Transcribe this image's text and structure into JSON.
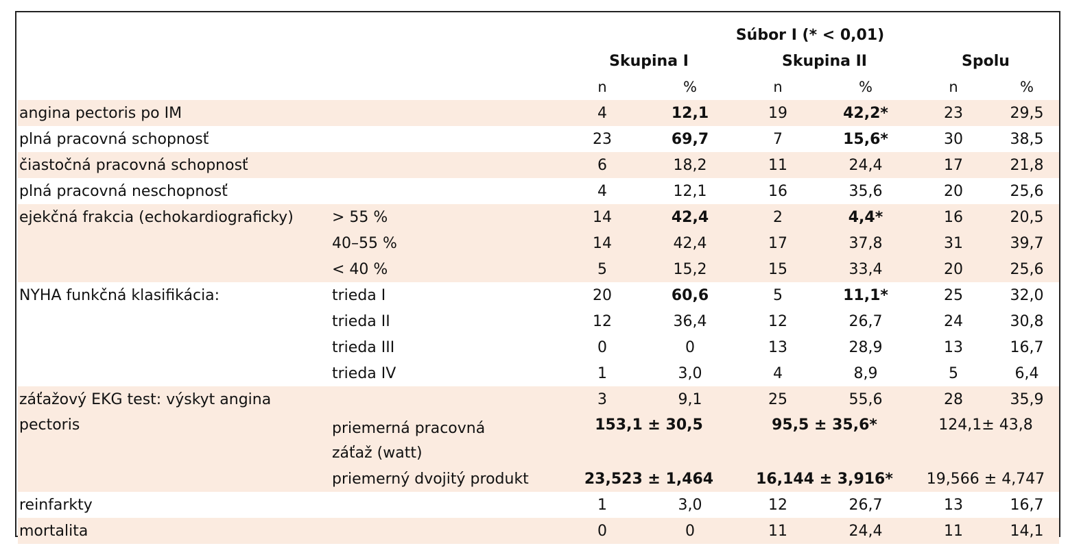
{
  "header": {
    "subor": "Súbor I (* < 0,01)",
    "groups": [
      "Skupina I",
      "Skupina II",
      "Spolu"
    ],
    "sub": [
      "n",
      "%",
      "n",
      "%",
      "n",
      "%"
    ]
  },
  "rows": [
    {
      "label": "angina pectoris po IM",
      "sub": "",
      "v": [
        "4",
        "12,1",
        "19",
        "42,2*",
        "23",
        "29,5"
      ]
    },
    {
      "label": "plná pracovná schopnosť",
      "sub": "",
      "v": [
        "23",
        "69,7",
        "7",
        "15,6*",
        "30",
        "38,5"
      ]
    },
    {
      "label": "čiastočná pracovná schopnosť",
      "sub": "",
      "v": [
        "6",
        "18,2",
        "11",
        "24,4",
        "17",
        "21,8"
      ]
    },
    {
      "label": "plná pracovná neschopnosť",
      "sub": "",
      "v": [
        "4",
        "12,1",
        "16",
        "35,6",
        "20",
        "25,6"
      ]
    },
    {
      "label": "ejekčná frakcia (echokardiograficky)",
      "sub": "> 55 %",
      "v": [
        "14",
        "42,4",
        "2",
        "4,4*",
        "16",
        "20,5"
      ]
    },
    {
      "label": "",
      "sub": "40–55 %",
      "v": [
        "14",
        "42,4",
        "17",
        "37,8",
        "31",
        "39,7"
      ]
    },
    {
      "label": "",
      "sub": "< 40 %",
      "v": [
        "5",
        "15,2",
        "15",
        "33,4",
        "20",
        "25,6"
      ]
    },
    {
      "label": "NYHA funkčná klasifikácia:",
      "sub": "trieda I",
      "v": [
        "20",
        "60,6",
        "5",
        "11,1*",
        "25",
        "32,0"
      ]
    },
    {
      "label": "",
      "sub": "trieda II",
      "v": [
        "12",
        "36,4",
        "12",
        "26,7",
        "24",
        "30,8"
      ]
    },
    {
      "label": "",
      "sub": "trieda III",
      "v": [
        "0",
        "0",
        "13",
        "28,9",
        "13",
        "16,7"
      ]
    },
    {
      "label": "",
      "sub": "trieda IV",
      "v": [
        "1",
        "3,0",
        "4",
        "8,9",
        "5",
        "6,4"
      ]
    },
    {
      "label": "záťažový EKG test: výskyt angina",
      "sub": "",
      "v": [
        "3",
        "9,1",
        "25",
        "55,6",
        "28",
        "35,9"
      ]
    },
    {
      "label": "pectoris",
      "sub": "priemerná pracovná záťaž (watt)",
      "m": [
        "153,1 ± 30,5",
        "95,5 ± 35,6*",
        "124,1± 43,8"
      ]
    },
    {
      "label": "",
      "sub": "priemerný dvojitý produkt",
      "m": [
        "23,523 ± 1,464",
        "16,144 ± 3,916*",
        "19,566 ± 4,747"
      ]
    },
    {
      "label": "reinfarkty",
      "sub": "",
      "v": [
        "1",
        "3,0",
        "12",
        "26,7",
        "13",
        "16,7"
      ]
    },
    {
      "label": "mortalita",
      "sub": "",
      "v": [
        "0",
        "0",
        "11",
        "24,4",
        "11",
        "14,1"
      ]
    }
  ]
}
